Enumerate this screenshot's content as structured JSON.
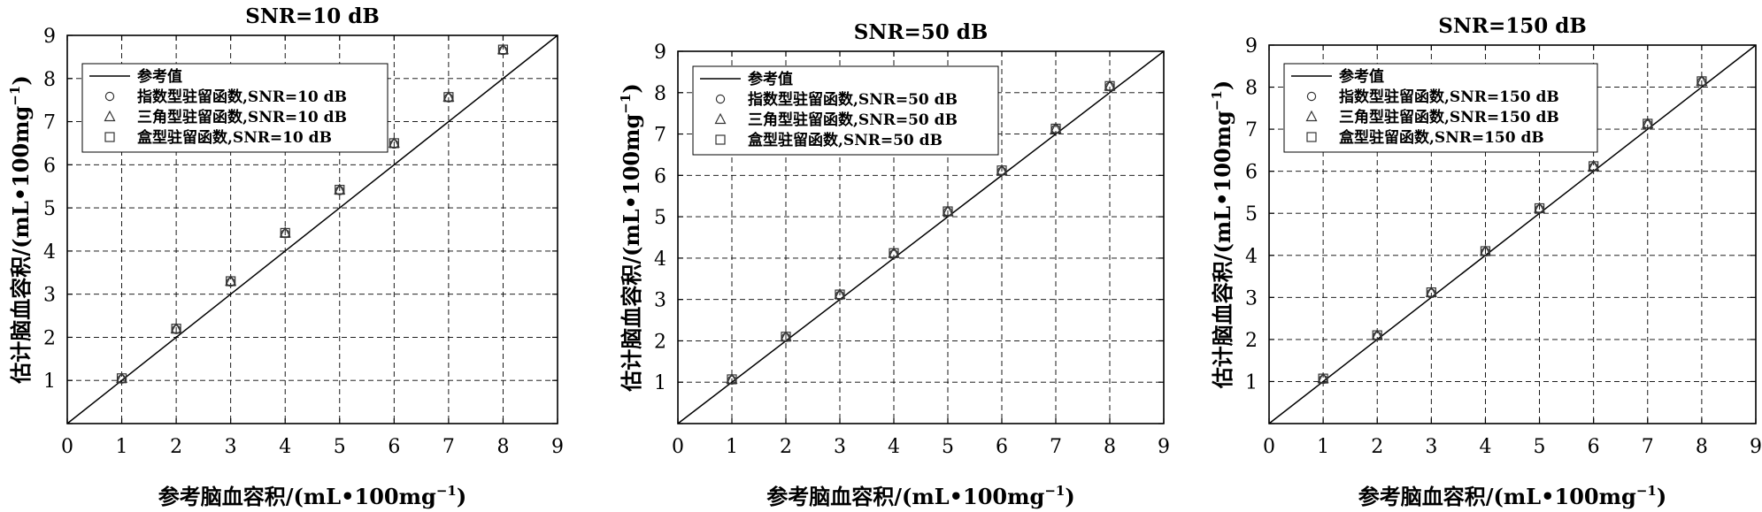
{
  "chart_data": [
    {
      "type": "scatter",
      "title": "SNR=10 dB",
      "xlabel_main": "参考脑血容积/(mL•100mg",
      "xlabel_sup": "−1",
      "xlabel_close": ")",
      "ylabel_main": "估计脑血容积/(mL•100mg",
      "ylabel_sup": "−1",
      "ylabel_close": ")",
      "xlim": [
        0,
        9
      ],
      "ylim": [
        0,
        9
      ],
      "xticks": [
        "0",
        "1",
        "2",
        "3",
        "4",
        "5",
        "6",
        "7",
        "8",
        "9"
      ],
      "yticks": [
        "1",
        "2",
        "3",
        "4",
        "5",
        "6",
        "7",
        "8",
        "9"
      ],
      "grid": true,
      "legend_position": "top-left",
      "reference": {
        "name": "参考值",
        "x": [
          0,
          9
        ],
        "y": [
          0,
          9
        ]
      },
      "series": [
        {
          "name": "指数型驻留函数,SNR=10 dB",
          "marker": "circle",
          "x": [
            1,
            2,
            3,
            4,
            5,
            6,
            7,
            8
          ],
          "y": [
            1.03,
            2.18,
            3.28,
            4.4,
            5.4,
            6.48,
            7.55,
            8.65
          ]
        },
        {
          "name": "三角型驻留函数,SNR=10 dB",
          "marker": "triangle",
          "x": [
            1,
            2,
            3,
            4,
            5,
            6,
            7,
            8
          ],
          "y": [
            1.05,
            2.2,
            3.3,
            4.42,
            5.42,
            6.5,
            7.57,
            8.67
          ]
        },
        {
          "name": "盒型驻留函数,SNR=10 dB",
          "marker": "square",
          "x": [
            1,
            2,
            3,
            4,
            5,
            6,
            7,
            8
          ],
          "y": [
            1.05,
            2.2,
            3.3,
            4.42,
            5.42,
            6.5,
            7.57,
            8.67
          ]
        }
      ]
    },
    {
      "type": "scatter",
      "title": "SNR=50 dB",
      "xlabel_main": "参考脑血容积/(mL•100mg",
      "xlabel_sup": "−1",
      "xlabel_close": ")",
      "ylabel_main": "估计脑血容积/(mL•100mg",
      "ylabel_sup": "−1",
      "ylabel_close": ")",
      "xlim": [
        0,
        9
      ],
      "ylim": [
        0,
        9
      ],
      "xticks": [
        "0",
        "1",
        "2",
        "3",
        "4",
        "5",
        "6",
        "7",
        "8",
        "9"
      ],
      "yticks": [
        "1",
        "2",
        "3",
        "4",
        "5",
        "6",
        "7",
        "8",
        "9"
      ],
      "grid": true,
      "legend_position": "top-left",
      "reference": {
        "name": "参考值",
        "x": [
          0,
          9
        ],
        "y": [
          0,
          9
        ]
      },
      "series": [
        {
          "name": "指数型驻留函数,SNR=50 dB",
          "marker": "circle",
          "x": [
            1,
            2,
            3,
            4,
            5,
            6,
            7,
            8
          ],
          "y": [
            1.05,
            2.08,
            3.1,
            4.1,
            5.12,
            6.1,
            7.12,
            8.15
          ]
        },
        {
          "name": "三角型驻留函数,SNR=50 dB",
          "marker": "triangle",
          "x": [
            1,
            2,
            3,
            4,
            5,
            6,
            7,
            8
          ],
          "y": [
            1.07,
            2.1,
            3.12,
            4.12,
            5.13,
            6.12,
            7.13,
            8.16
          ]
        },
        {
          "name": "盒型驻留函数,SNR=50 dB",
          "marker": "square",
          "x": [
            1,
            2,
            3,
            4,
            5,
            6,
            7,
            8
          ],
          "y": [
            1.07,
            2.1,
            3.12,
            4.12,
            5.13,
            6.12,
            7.13,
            8.16
          ]
        }
      ]
    },
    {
      "type": "scatter",
      "title": "SNR=150 dB",
      "xlabel_main": "参考脑血容积/(mL•100mg",
      "xlabel_sup": "−1",
      "xlabel_close": ")",
      "ylabel_main": "估计脑血容积/(mL•100mg",
      "ylabel_sup": "−1",
      "ylabel_close": ")",
      "xlim": [
        0,
        9
      ],
      "ylim": [
        0,
        9
      ],
      "xticks": [
        "0",
        "1",
        "2",
        "3",
        "4",
        "5",
        "6",
        "7",
        "8",
        "9"
      ],
      "yticks": [
        "1",
        "2",
        "3",
        "4",
        "5",
        "6",
        "7",
        "8",
        "9"
      ],
      "grid": true,
      "legend_position": "top-left",
      "reference": {
        "name": "参考值",
        "x": [
          0,
          9
        ],
        "y": [
          0,
          9
        ]
      },
      "series": [
        {
          "name": "指数型驻留函数,SNR=150 dB",
          "marker": "circle",
          "x": [
            1,
            2,
            3,
            4,
            5,
            6,
            7,
            8
          ],
          "y": [
            1.05,
            2.08,
            3.1,
            4.08,
            5.1,
            6.1,
            7.12,
            8.13
          ]
        },
        {
          "name": "三角型驻留函数,SNR=150 dB",
          "marker": "triangle",
          "x": [
            1,
            2,
            3,
            4,
            5,
            6,
            7,
            8
          ],
          "y": [
            1.07,
            2.1,
            3.12,
            4.1,
            5.12,
            6.12,
            7.13,
            8.14
          ]
        },
        {
          "name": "盒型驻留函数,SNR=150 dB",
          "marker": "square",
          "x": [
            1,
            2,
            3,
            4,
            5,
            6,
            7,
            8
          ],
          "y": [
            1.07,
            2.1,
            3.12,
            4.1,
            5.12,
            6.12,
            7.13,
            8.14
          ]
        }
      ]
    }
  ]
}
